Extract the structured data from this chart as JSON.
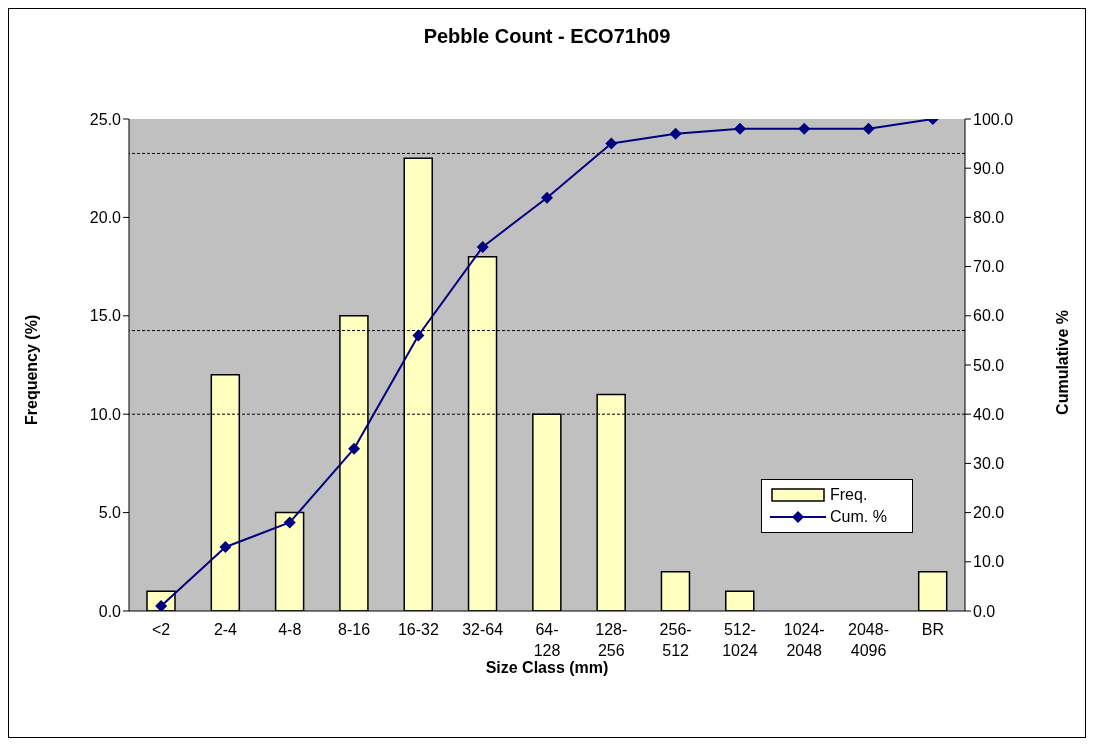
{
  "chart_data": {
    "type": "bar",
    "title": "Pebble Count - ECO71h09",
    "xlabel": "Size Class (mm)",
    "ylabel": "Frequency (%)",
    "y2label": "Cumulative %",
    "categories": [
      "<2",
      "2-4",
      "4-8",
      "8-16",
      "16-32",
      "32-64",
      "64-128",
      "128-256",
      "256-512",
      "512-1024",
      "1024-2048",
      "2048-4096",
      "BR"
    ],
    "series": [
      {
        "name": "Freq.",
        "type": "bar",
        "color": "#ffffc0",
        "values": [
          1,
          12,
          5,
          15,
          23,
          18,
          10,
          11,
          2,
          1,
          0,
          0,
          2
        ]
      },
      {
        "name": "Cum. %",
        "type": "line",
        "axis": "y2",
        "color": "#000080",
        "marker": "diamond",
        "values": [
          1,
          13,
          18,
          33,
          56,
          74,
          84,
          95,
          97,
          98,
          98,
          98,
          100
        ]
      }
    ],
    "ylim": [
      0,
      25
    ],
    "yticks": [
      {
        "value": 0,
        "label": "0.0"
      },
      {
        "value": 5,
        "label": "5.0"
      },
      {
        "value": 10,
        "label": "10.0"
      },
      {
        "value": 15,
        "label": "15.0"
      },
      {
        "value": 20,
        "label": "20.0"
      },
      {
        "value": 25,
        "label": "25.0"
      }
    ],
    "y2lim": [
      0,
      100
    ],
    "y2ticks": [
      {
        "value": 0,
        "label": "0.0"
      },
      {
        "value": 10,
        "label": "10.0"
      },
      {
        "value": 20,
        "label": "20.0"
      },
      {
        "value": 30,
        "label": "30.0"
      },
      {
        "value": 40,
        "label": "40.0"
      },
      {
        "value": 50,
        "label": "50.0"
      },
      {
        "value": 60,
        "label": "60.0"
      },
      {
        "value": 70,
        "label": "70.0"
      },
      {
        "value": 80,
        "label": "80.0"
      },
      {
        "value": 90,
        "label": "90.0"
      },
      {
        "value": 100,
        "label": "100.0"
      }
    ],
    "ref_lines": [
      {
        "axis": "y2",
        "value": 93,
        "color": "#000000",
        "line_style": "dashed"
      },
      {
        "axis": "y2",
        "value": 57,
        "color": "#000000",
        "line_style": "dashed"
      },
      {
        "axis": "y2",
        "value": 40,
        "color": "#000000",
        "line_style": "dashed"
      }
    ],
    "grid": false,
    "legend": "right"
  }
}
